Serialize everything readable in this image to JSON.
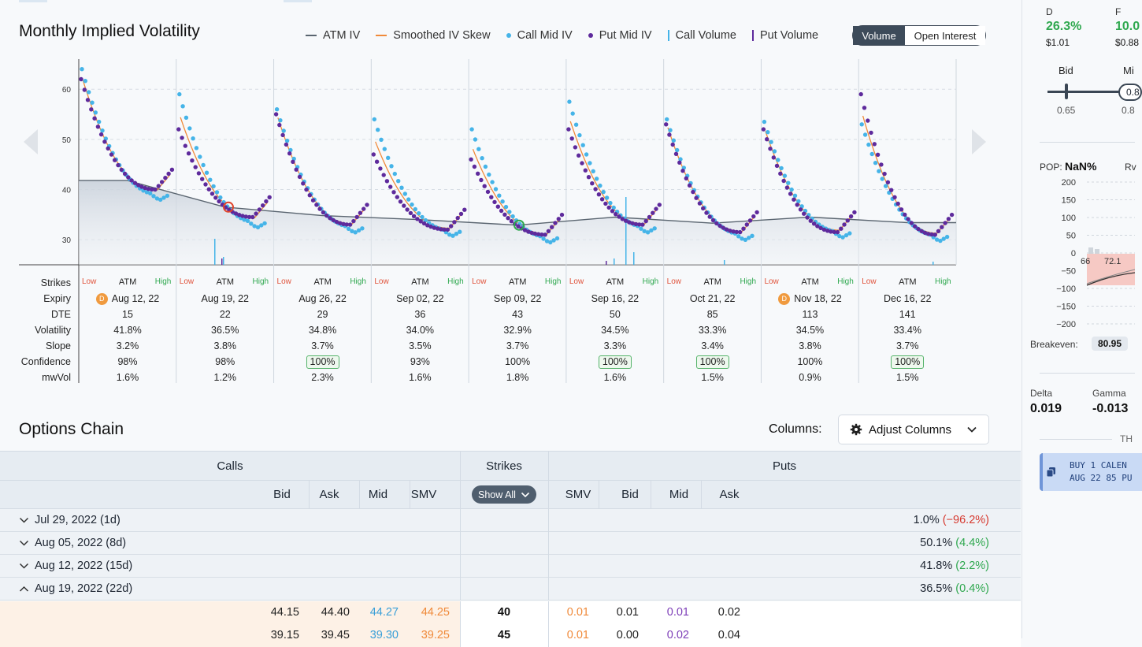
{
  "chart": {
    "title": "Monthly Implied Volatility",
    "legend": [
      {
        "label": "ATM IV",
        "kind": "line",
        "color": "#5a6570"
      },
      {
        "label": "Smoothed IV Skew",
        "kind": "line",
        "color": "#f08a3a"
      },
      {
        "label": "Call Mid IV",
        "kind": "dot",
        "color": "#45b4e8"
      },
      {
        "label": "Put Mid IV",
        "kind": "dot",
        "color": "#5e2a9c"
      },
      {
        "label": "Call Volume",
        "kind": "bar",
        "color": "#45b4e8"
      },
      {
        "label": "Put Volume",
        "kind": "bar",
        "color": "#5e2a9c"
      }
    ],
    "toggle": {
      "active": "Volume",
      "inactive": "Open Interest"
    },
    "y_ticks": [
      "60",
      "50",
      "40",
      "30"
    ],
    "row_labels": {
      "strikes": "Strikes",
      "expiry": "Expiry",
      "dte": "DTE",
      "volatility": "Volatility",
      "slope": "Slope",
      "confidence": "Confidence",
      "mwvol": "mwVol"
    },
    "strike_marks": {
      "low": "Low",
      "atm": "ATM",
      "high": "High"
    },
    "dividend_badge": "D",
    "expirations": [
      {
        "expiry": "Aug 12, 22",
        "dte": "15",
        "volatility": "41.8%",
        "slope": "3.2%",
        "confidence": "98%",
        "confidence_badge": false,
        "mwvol": "1.6%",
        "dividend": true,
        "atm_iv": 41.8
      },
      {
        "expiry": "Aug 19, 22",
        "dte": "22",
        "volatility": "36.5%",
        "slope": "3.8%",
        "confidence": "98%",
        "confidence_badge": false,
        "mwvol": "1.2%",
        "dividend": false,
        "atm_iv": 36.5
      },
      {
        "expiry": "Aug 26, 22",
        "dte": "29",
        "volatility": "34.8%",
        "slope": "3.7%",
        "confidence": "100%",
        "confidence_badge": true,
        "mwvol": "2.3%",
        "dividend": false,
        "atm_iv": 34.8
      },
      {
        "expiry": "Sep 02, 22",
        "dte": "36",
        "volatility": "34.0%",
        "slope": "3.5%",
        "confidence": "93%",
        "confidence_badge": false,
        "mwvol": "1.6%",
        "dividend": false,
        "atm_iv": 34.0
      },
      {
        "expiry": "Sep 09, 22",
        "dte": "43",
        "volatility": "32.9%",
        "slope": "3.7%",
        "confidence": "100%",
        "confidence_badge": false,
        "mwvol": "1.8%",
        "dividend": false,
        "atm_iv": 32.9
      },
      {
        "expiry": "Sep 16, 22",
        "dte": "50",
        "volatility": "34.5%",
        "slope": "3.3%",
        "confidence": "100%",
        "confidence_badge": true,
        "mwvol": "1.6%",
        "dividend": false,
        "atm_iv": 34.5
      },
      {
        "expiry": "Oct 21, 22",
        "dte": "85",
        "volatility": "33.3%",
        "slope": "3.4%",
        "confidence": "100%",
        "confidence_badge": true,
        "mwvol": "1.5%",
        "dividend": false,
        "atm_iv": 33.3
      },
      {
        "expiry": "Nov 18, 22",
        "dte": "113",
        "volatility": "34.5%",
        "slope": "3.8%",
        "confidence": "100%",
        "confidence_badge": false,
        "mwvol": "0.9%",
        "dividend": true,
        "atm_iv": 34.5
      },
      {
        "expiry": "Dec 16, 22",
        "dte": "141",
        "volatility": "33.4%",
        "slope": "3.7%",
        "confidence": "100%",
        "confidence_badge": true,
        "mwvol": "1.5%",
        "dividend": false,
        "atm_iv": 33.4
      }
    ]
  },
  "chart_data": {
    "type": "scatter",
    "title": "Monthly Implied Volatility",
    "ylim": [
      25,
      66
    ],
    "y_ticks": [
      60,
      50,
      40,
      30
    ],
    "x": [
      "Aug 12, 22",
      "Aug 19, 22",
      "Aug 26, 22",
      "Sep 02, 22",
      "Sep 09, 22",
      "Sep 16, 22",
      "Oct 21, 22",
      "Nov 18, 22",
      "Dec 16, 22"
    ],
    "series": [
      {
        "name": "ATM IV",
        "values": [
          41.8,
          36.5,
          34.8,
          34.0,
          32.9,
          34.5,
          33.3,
          34.5,
          33.4
        ]
      },
      {
        "name": "Call Mid IV",
        "skew_start": [
          64,
          59,
          56,
          54,
          52,
          57.5,
          54,
          53.5,
          53
        ],
        "skew_min": [
          39,
          33.5,
          32.5,
          31.8,
          30.5,
          32.5,
          31,
          31.5,
          30.8
        ]
      },
      {
        "name": "Put Mid IV",
        "skew_start": [
          62,
          52,
          55,
          47,
          46,
          52,
          53,
          52,
          59
        ],
        "skew_min": [
          40,
          34.5,
          33,
          32,
          31,
          33,
          31.5,
          31.5,
          31
        ]
      }
    ],
    "grid": true
  },
  "chain": {
    "title": "Options Chain",
    "columns_label": "Columns:",
    "adjust_label": "Adjust Columns",
    "calls_header": "Calls",
    "strikes_header": "Strikes",
    "puts_header": "Puts",
    "show_all": "Show All",
    "call_cols": [
      "Bid",
      "Ask",
      "Mid",
      "SMV"
    ],
    "put_cols": [
      "SMV",
      "Bid",
      "Mid",
      "Ask"
    ],
    "expirations": [
      {
        "label": "Jul 29, 2022 (1d)",
        "iv": "1.0%",
        "change": "(−96.2%)",
        "dir": "neg",
        "open": false
      },
      {
        "label": "Aug 05, 2022 (8d)",
        "iv": "50.1%",
        "change": "(4.4%)",
        "dir": "pos",
        "open": false
      },
      {
        "label": "Aug 12, 2022 (15d)",
        "iv": "41.8%",
        "change": "(2.2%)",
        "dir": "pos",
        "open": false
      },
      {
        "label": "Aug 19, 2022 (22d)",
        "iv": "36.5%",
        "change": "(0.4%)",
        "dir": "pos",
        "open": true
      }
    ],
    "rows": [
      {
        "call_bid": "44.15",
        "call_ask": "44.40",
        "call_mid": "44.27",
        "call_smv": "44.25",
        "strike": "40",
        "put_smv": "0.01",
        "put_bid": "0.01",
        "put_mid": "0.01",
        "put_ask": "0.02"
      },
      {
        "call_bid": "39.15",
        "call_ask": "39.45",
        "call_mid": "39.30",
        "call_smv": "39.25",
        "strike": "45",
        "put_smv": "0.01",
        "put_bid": "0.00",
        "put_mid": "0.02",
        "put_ask": "0.04"
      }
    ]
  },
  "side": {
    "d_label": "D",
    "d_value": "26.3%",
    "d_price": "$1.01",
    "f_label": "F",
    "f_value": "10.0",
    "f_price": "$0.88",
    "bid_label": "Bid",
    "bid_value": "0.65",
    "mid_label": "Mi",
    "mid_pill": "0.8",
    "mid_value": "0.8",
    "pop_label": "POP:",
    "pop_value": "NaN%",
    "rw_label": "Rv",
    "pl_ticks": [
      "200",
      "150",
      "100",
      "50",
      "0",
      "−50",
      "−100",
      "−150",
      "−200"
    ],
    "pl_labels": [
      "66",
      "72.1"
    ],
    "breakeven_label": "Breakeven:",
    "breakeven_value": "80.95",
    "delta_label": "Delta",
    "delta_value": "0.019",
    "gamma_label": "Gamma",
    "gamma_value": "-0.013",
    "th_label": "TH",
    "order_line1": "BUY 1 CALEN",
    "order_line2": "AUG 22 85 PU"
  }
}
